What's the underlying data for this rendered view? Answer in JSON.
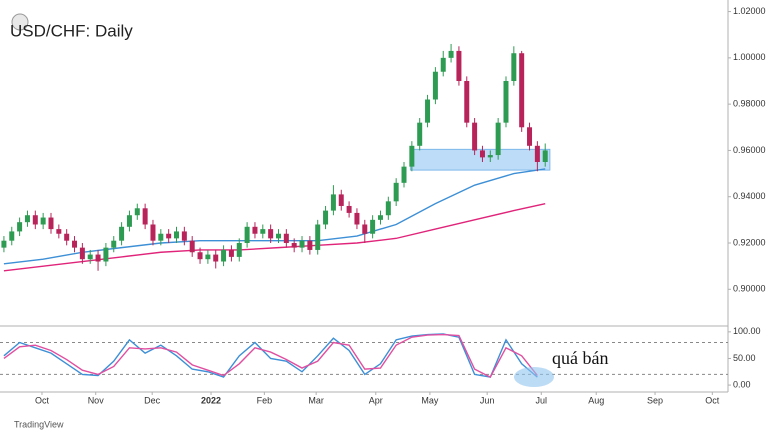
{
  "chart_data": [
    {
      "type": "candlestick",
      "title": "USD/CHF: Daily",
      "open": [
        0.918,
        0.921,
        0.925,
        0.929,
        0.932,
        0.928,
        0.931,
        0.926,
        0.924,
        0.921,
        0.918,
        0.913,
        0.915,
        0.912,
        0.918,
        0.921,
        0.927,
        0.932,
        0.935,
        0.928,
        0.921,
        0.924,
        0.922,
        0.925,
        0.921,
        0.916,
        0.913,
        0.915,
        0.912,
        0.917,
        0.914,
        0.92,
        0.927,
        0.924,
        0.926,
        0.922,
        0.924,
        0.92,
        0.918,
        0.921,
        0.917,
        0.928,
        0.934,
        0.941,
        0.936,
        0.933,
        0.928,
        0.924,
        0.93,
        0.932,
        0.938,
        0.946,
        0.953,
        0.962,
        0.972,
        0.982,
        0.994,
        1.0,
        1.003,
        0.99,
        0.972,
        0.96,
        0.957,
        0.958,
        0.972,
        0.99,
        1.002,
        0.97,
        0.962,
        0.955
      ],
      "high": [
        0.923,
        0.927,
        0.931,
        0.934,
        0.934,
        0.933,
        0.933,
        0.928,
        0.926,
        0.923,
        0.92,
        0.917,
        0.917,
        0.92,
        0.923,
        0.929,
        0.934,
        0.937,
        0.937,
        0.93,
        0.926,
        0.926,
        0.927,
        0.927,
        0.923,
        0.918,
        0.917,
        0.917,
        0.919,
        0.919,
        0.922,
        0.929,
        0.929,
        0.928,
        0.928,
        0.926,
        0.926,
        0.922,
        0.923,
        0.923,
        0.93,
        0.936,
        0.945,
        0.943,
        0.938,
        0.935,
        0.93,
        0.932,
        0.934,
        0.94,
        0.948,
        0.955,
        0.964,
        0.974,
        0.984,
        0.996,
        1.003,
        1.006,
        1.005,
        0.992,
        0.974,
        0.962,
        0.96,
        0.974,
        0.992,
        1.005,
        1.003,
        0.972,
        0.964,
        0.963
      ],
      "low": [
        0.916,
        0.919,
        0.923,
        0.927,
        0.926,
        0.926,
        0.924,
        0.922,
        0.919,
        0.916,
        0.911,
        0.911,
        0.908,
        0.91,
        0.916,
        0.919,
        0.925,
        0.93,
        0.926,
        0.919,
        0.919,
        0.92,
        0.92,
        0.919,
        0.914,
        0.911,
        0.911,
        0.909,
        0.91,
        0.912,
        0.912,
        0.918,
        0.922,
        0.922,
        0.92,
        0.92,
        0.918,
        0.916,
        0.916,
        0.915,
        0.915,
        0.926,
        0.932,
        0.934,
        0.931,
        0.926,
        0.92,
        0.922,
        0.928,
        0.93,
        0.936,
        0.944,
        0.951,
        0.96,
        0.97,
        0.98,
        0.992,
        0.998,
        0.988,
        0.97,
        0.958,
        0.955,
        0.955,
        0.956,
        0.97,
        0.988,
        0.968,
        0.96,
        0.951,
        0.953
      ],
      "close": [
        0.921,
        0.925,
        0.929,
        0.932,
        0.928,
        0.931,
        0.926,
        0.924,
        0.921,
        0.918,
        0.913,
        0.915,
        0.912,
        0.918,
        0.921,
        0.927,
        0.932,
        0.935,
        0.928,
        0.921,
        0.924,
        0.922,
        0.925,
        0.921,
        0.916,
        0.913,
        0.915,
        0.912,
        0.917,
        0.914,
        0.92,
        0.927,
        0.924,
        0.926,
        0.922,
        0.924,
        0.92,
        0.918,
        0.921,
        0.917,
        0.928,
        0.934,
        0.941,
        0.936,
        0.933,
        0.928,
        0.924,
        0.93,
        0.932,
        0.938,
        0.946,
        0.953,
        0.962,
        0.972,
        0.982,
        0.994,
        1.0,
        1.003,
        0.99,
        0.972,
        0.96,
        0.957,
        0.958,
        0.972,
        0.99,
        1.002,
        0.97,
        0.962,
        0.955,
        0.96
      ],
      "up_color": "#2e9b52",
      "down_color": "#b8235a",
      "xlim": [
        -0.5,
        92.3
      ],
      "ylim": [
        0.885,
        1.025
      ],
      "yticks": [
        {
          "value": 0.9,
          "label": "0.90000"
        },
        {
          "value": 0.92,
          "label": "0.92000"
        },
        {
          "value": 0.94,
          "label": "0.94000"
        },
        {
          "value": 0.96,
          "label": "0.96000"
        },
        {
          "value": 0.98,
          "label": "0.98000"
        },
        {
          "value": 1.0,
          "label": "1.00000"
        },
        {
          "value": 1.02,
          "label": "1.02000"
        }
      ],
      "overlays": [
        {
          "color": "#3d8fd6",
          "x": [
            0,
            5,
            10,
            15,
            20,
            25,
            30,
            35,
            40,
            45,
            50,
            55,
            60,
            65,
            69
          ],
          "values": [
            0.911,
            0.913,
            0.916,
            0.918,
            0.92,
            0.921,
            0.921,
            0.921,
            0.921,
            0.923,
            0.928,
            0.937,
            0.945,
            0.95,
            0.952
          ]
        },
        {
          "color": "#e0247a",
          "x": [
            0,
            5,
            10,
            15,
            20,
            25,
            30,
            35,
            40,
            45,
            50,
            55,
            60,
            65,
            69
          ],
          "values": [
            0.908,
            0.91,
            0.912,
            0.914,
            0.916,
            0.917,
            0.917,
            0.918,
            0.919,
            0.92,
            0.922,
            0.926,
            0.93,
            0.934,
            0.937
          ]
        }
      ],
      "zone": {
        "color": "#bcdcf7",
        "y": [
          0.9515,
          0.9605
        ],
        "x": [
          51.8,
          69.6
        ]
      }
    },
    {
      "type": "line",
      "annotation": "quá bán",
      "xlim": [
        -0.5,
        92.3
      ],
      "ylim": [
        -13,
        111
      ],
      "yticks": [
        {
          "value": 100,
          "label": "100.00"
        },
        {
          "value": 50,
          "label": "50.00"
        },
        {
          "value": 0,
          "label": "0.00"
        }
      ],
      "levels": [
        80,
        20
      ],
      "series": [
        {
          "color": "#3d8fd6",
          "x": [
            0,
            2,
            4,
            6,
            8,
            10,
            12,
            14,
            16,
            18,
            20,
            22,
            24,
            26,
            28,
            30,
            32,
            34,
            36,
            38,
            40,
            42,
            44,
            46,
            48,
            50,
            52,
            54,
            56,
            58,
            60,
            62,
            64,
            66,
            68
          ],
          "values": [
            55,
            80,
            70,
            60,
            40,
            20,
            18,
            45,
            85,
            60,
            75,
            55,
            30,
            25,
            15,
            55,
            80,
            50,
            45,
            25,
            55,
            88,
            65,
            20,
            40,
            85,
            92,
            95,
            96,
            90,
            20,
            15,
            85,
            40,
            15
          ]
        },
        {
          "color": "#e04fa0",
          "x": [
            0,
            2,
            4,
            6,
            8,
            10,
            12,
            14,
            16,
            18,
            20,
            22,
            24,
            26,
            28,
            30,
            32,
            34,
            36,
            38,
            40,
            42,
            44,
            46,
            48,
            50,
            52,
            54,
            56,
            58,
            60,
            62,
            64,
            66,
            68
          ],
          "values": [
            50,
            72,
            75,
            65,
            48,
            28,
            20,
            35,
            70,
            68,
            70,
            62,
            38,
            28,
            18,
            40,
            70,
            62,
            48,
            32,
            45,
            80,
            75,
            30,
            32,
            75,
            90,
            94,
            95,
            93,
            30,
            15,
            70,
            55,
            18
          ]
        }
      ],
      "xticks": [
        {
          "value": 4.85,
          "label": "Oct"
        },
        {
          "value": 11.7,
          "label": "Nov"
        },
        {
          "value": 18.9,
          "label": "Dec"
        },
        {
          "value": 26.4,
          "label": "2022"
        },
        {
          "value": 33.2,
          "label": "Feb"
        },
        {
          "value": 39.8,
          "label": "Mar"
        },
        {
          "value": 47.4,
          "label": "Apr"
        },
        {
          "value": 54.3,
          "label": "May"
        },
        {
          "value": 61.6,
          "label": "Jun"
        },
        {
          "value": 68.5,
          "label": "Jul"
        },
        {
          "value": 75.5,
          "label": "Aug"
        },
        {
          "value": 83.0,
          "label": "Sep"
        },
        {
          "value": 90.3,
          "label": "Oct"
        }
      ]
    }
  ],
  "footer": "TradingView"
}
